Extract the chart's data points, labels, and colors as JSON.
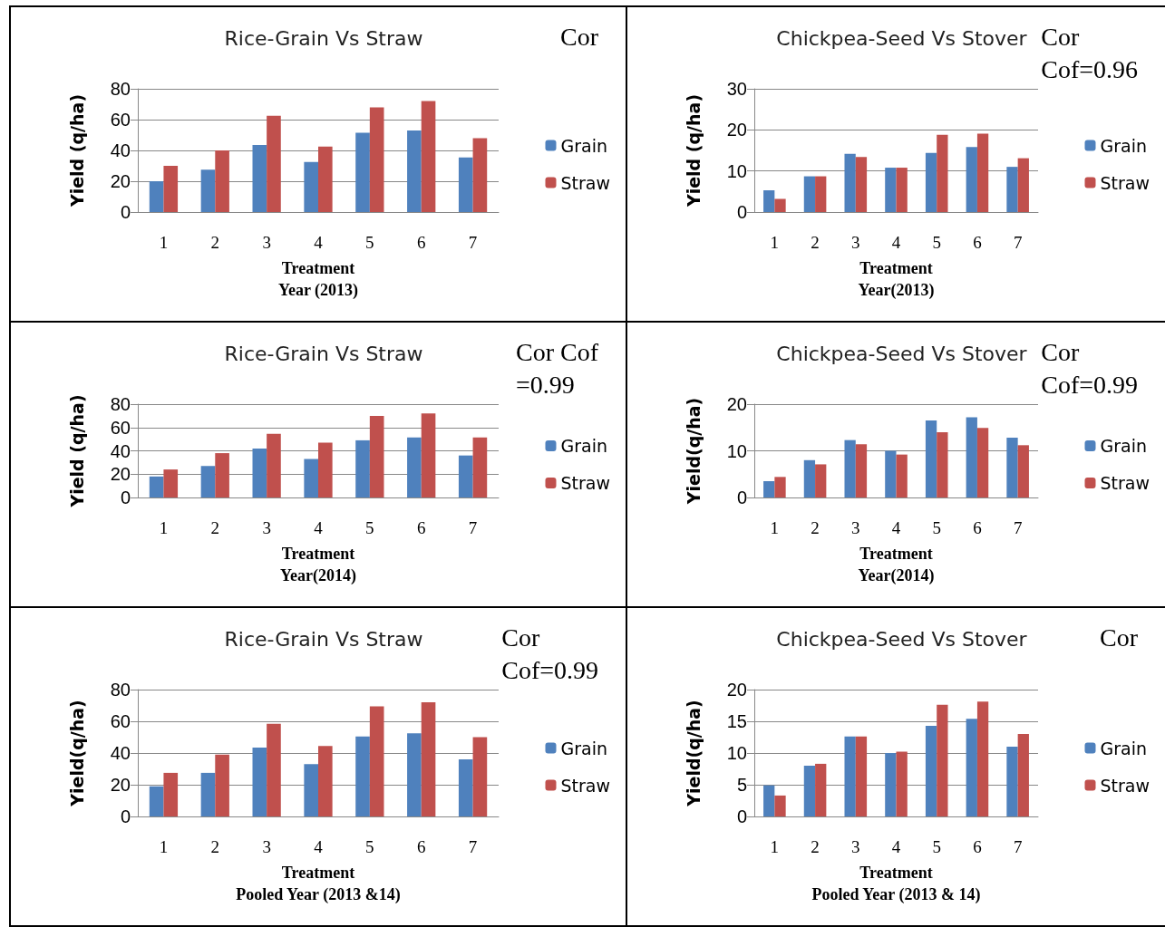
{
  "chart_data": [
    {
      "type": "bar",
      "title": "Rice-Grain Vs Straw",
      "xlabel": "Treatment\nYear (2013)",
      "ylabel": "Yield (q/ha)",
      "categories": [
        "1",
        "2",
        "3",
        "4",
        "5",
        "6",
        "7"
      ],
      "series": [
        {
          "name": "Grain",
          "color": "#4f81bd",
          "values": [
            20,
            27.5,
            43.5,
            32.5,
            51.5,
            53,
            35.5
          ]
        },
        {
          "name": "Straw",
          "color": "#c0504d",
          "values": [
            30,
            40,
            62.5,
            42.5,
            68,
            72,
            48
          ]
        }
      ],
      "ylim": [
        0,
        80
      ],
      "yticks": [
        0,
        20,
        40,
        60,
        80
      ],
      "grid": "y",
      "legend": "right",
      "annotations": [
        "Cor"
      ]
    },
    {
      "type": "bar",
      "title": "Chickpea-Seed Vs Stover",
      "xlabel": "Treatment\nYear(2013)",
      "ylabel": "Yield (q/ha)",
      "categories": [
        "1",
        "2",
        "3",
        "4",
        "5",
        "6",
        "7"
      ],
      "series": [
        {
          "name": "Grain",
          "color": "#4f81bd",
          "values": [
            5.3,
            8.7,
            14.2,
            10.8,
            14.4,
            15.8,
            11
          ]
        },
        {
          "name": "Straw",
          "color": "#c0504d",
          "values": [
            3.2,
            8.7,
            13.4,
            10.8,
            18.8,
            19.1,
            13.1
          ]
        }
      ],
      "ylim": [
        0,
        30
      ],
      "yticks": [
        0,
        10,
        20,
        30
      ],
      "grid": "y",
      "legend": "right",
      "annotations": [
        "Cor\nCof=0.96"
      ]
    },
    {
      "type": "bar",
      "title": "Rice-Grain Vs Straw",
      "xlabel": "Treatment\nYear(2014)",
      "ylabel": "Yield (q/ha)",
      "categories": [
        "1",
        "2",
        "3",
        "4",
        "5",
        "6",
        "7"
      ],
      "series": [
        {
          "name": "Grain",
          "color": "#4f81bd",
          "values": [
            18,
            27,
            42,
            33,
            49,
            51.5,
            36
          ]
        },
        {
          "name": "Straw",
          "color": "#c0504d",
          "values": [
            24,
            38,
            54.5,
            47,
            70,
            72,
            51.5
          ]
        }
      ],
      "ylim": [
        0,
        80
      ],
      "yticks": [
        0,
        20,
        40,
        60,
        80
      ],
      "grid": "y",
      "legend": "right",
      "annotations": [
        "Cor Cof\n=0.99"
      ]
    },
    {
      "type": "bar",
      "title": "Chickpea-Seed Vs Stover",
      "xlabel": "Treatment\nYear(2014)",
      "ylabel": "Yield(q/ha)",
      "categories": [
        "1",
        "2",
        "3",
        "4",
        "5",
        "6",
        "7"
      ],
      "series": [
        {
          "name": "Grain",
          "color": "#4f81bd",
          "values": [
            3.5,
            8,
            12.3,
            10,
            16.5,
            17.2,
            12.8
          ]
        },
        {
          "name": "Straw",
          "color": "#c0504d",
          "values": [
            4.4,
            7.1,
            11.4,
            9.2,
            14,
            14.9,
            11.2
          ]
        }
      ],
      "ylim": [
        0,
        20
      ],
      "yticks": [
        0,
        10,
        20
      ],
      "grid": "y",
      "legend": "right",
      "annotations": [
        "Cor\nCof=0.99"
      ]
    },
    {
      "type": "bar",
      "title": "Rice-Grain Vs Straw",
      "xlabel": "Treatment\nPooled Year (2013 &14)",
      "ylabel": "Yield(q/ha)",
      "categories": [
        "1",
        "2",
        "3",
        "4",
        "5",
        "6",
        "7"
      ],
      "series": [
        {
          "name": "Grain",
          "color": "#4f81bd",
          "values": [
            19,
            27.5,
            43.5,
            33,
            50.5,
            52.5,
            36
          ]
        },
        {
          "name": "Straw",
          "color": "#c0504d",
          "values": [
            27.5,
            39,
            58.5,
            44.5,
            69.5,
            72,
            50
          ]
        }
      ],
      "ylim": [
        0,
        80
      ],
      "yticks": [
        0,
        20,
        40,
        60,
        80
      ],
      "grid": "y",
      "legend": "right",
      "annotations": [
        "Cor\nCof=0.99"
      ]
    },
    {
      "type": "bar",
      "title": "Chickpea-Seed Vs Stover",
      "xlabel": "Treatment\nPooled Year (2013 & 14)",
      "ylabel": "Yield(q/ha)",
      "categories": [
        "1",
        "2",
        "3",
        "4",
        "5",
        "6",
        "7"
      ],
      "series": [
        {
          "name": "Grain",
          "color": "#4f81bd",
          "values": [
            4.9,
            8,
            12.6,
            10,
            14.3,
            15.4,
            11
          ]
        },
        {
          "name": "Straw",
          "color": "#c0504d",
          "values": [
            3.3,
            8.3,
            12.6,
            10.2,
            17.6,
            18.1,
            13
          ]
        }
      ],
      "ylim": [
        0,
        20
      ],
      "yticks": [
        0,
        5,
        10,
        15,
        20
      ],
      "grid": "y",
      "legend": "right",
      "annotations": [
        "Cor"
      ]
    }
  ]
}
